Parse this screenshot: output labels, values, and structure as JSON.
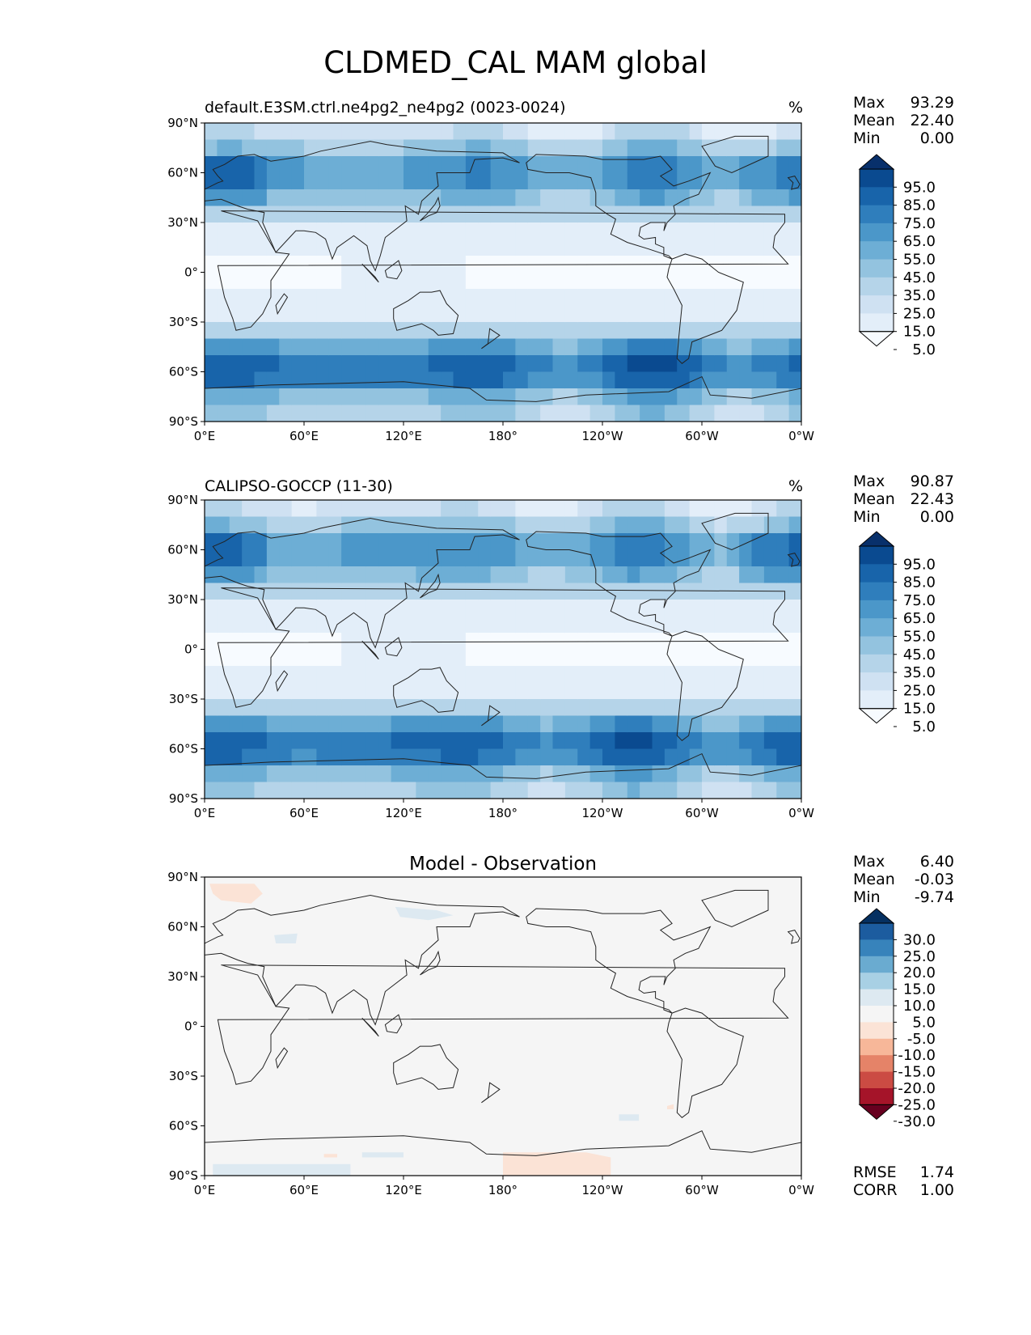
{
  "figure_title": "CLDMED_CAL MAM global",
  "panels": [
    {
      "id": "model",
      "title_left": "default.E3SM.ctrl.ne4pg2_ne4pg2 (0023-0024)",
      "units": "%",
      "stats": {
        "max": "93.29",
        "mean": "22.40",
        "min": "0.00"
      },
      "colorbar_labels": [
        "95.0",
        "85.0",
        "75.0",
        "65.0",
        "55.0",
        "45.0",
        "35.0",
        "25.0",
        "15.0",
        "5.0"
      ]
    },
    {
      "id": "obs",
      "title_left": "CALIPSO-GOCCP (11-30)",
      "units": "%",
      "stats": {
        "max": "90.87",
        "mean": "22.43",
        "min": "0.00"
      },
      "colorbar_labels": [
        "95.0",
        "85.0",
        "75.0",
        "65.0",
        "55.0",
        "45.0",
        "35.0",
        "25.0",
        "15.0",
        "5.0"
      ]
    },
    {
      "id": "diff",
      "title_center": "Model - Observation",
      "stats": {
        "max": "6.40",
        "mean": "-0.03",
        "min": "-9.74"
      },
      "colorbar_labels": [
        "30.0",
        "25.0",
        "20.0",
        "15.0",
        "10.0",
        "5.0",
        "-5.0",
        "-10.0",
        "-15.0",
        "-20.0",
        "-25.0",
        "-30.0"
      ],
      "rmse_label": "RMSE",
      "rmse": "1.74",
      "corr_label": "CORR",
      "corr": "1.00"
    }
  ],
  "stat_labels": {
    "max": "Max",
    "mean": "Mean",
    "min": "Min"
  },
  "lat_ticks": [
    "90°N",
    "60°N",
    "30°N",
    "0°",
    "30°S",
    "60°S",
    "90°S"
  ],
  "lon_ticks": [
    "0°E",
    "60°E",
    "120°E",
    "180°",
    "120°W",
    "60°W",
    "0°W"
  ],
  "colors": {
    "blues": [
      "#f7fbff",
      "#e3eef9",
      "#cfe1f2",
      "#b5d4e9",
      "#93c3df",
      "#6daed5",
      "#4b97c9",
      "#2f7ebc",
      "#1864aa",
      "#0a4a90",
      "#08306b"
    ],
    "diverging": [
      "#67001f",
      "#a51429",
      "#cb4b43",
      "#e58368",
      "#f7b799",
      "#fbe3d6",
      "#f5f5f5",
      "#dde9f1",
      "#a8d0e4",
      "#6aabd0",
      "#3783bb",
      "#1c5c9f",
      "#053061"
    ],
    "land_outline": "#222222",
    "diff_background": "#f5f5f5"
  },
  "chart_data": [
    {
      "type": "heatmap",
      "title": "default.E3SM.ctrl.ne4pg2_ne4pg2 (0023-0024)",
      "units": "%",
      "x_range": [
        "0°E",
        "0°W"
      ],
      "y_range": [
        "90°S",
        "90°N"
      ],
      "zonal_mean_profile": {
        "lat": [
          90,
          80,
          70,
          60,
          50,
          40,
          30,
          20,
          10,
          0,
          -10,
          -20,
          -30,
          -40,
          -50,
          -60,
          -70,
          -80,
          -90
        ],
        "value": [
          15,
          25,
          50,
          65,
          50,
          35,
          20,
          8,
          3,
          2,
          3,
          8,
          20,
          45,
          65,
          75,
          55,
          35,
          30
        ]
      },
      "levels": [
        5,
        15,
        25,
        35,
        45,
        55,
        65,
        75,
        85,
        95
      ]
    },
    {
      "type": "heatmap",
      "title": "CALIPSO-GOCCP (11-30)",
      "units": "%",
      "x_range": [
        "0°E",
        "0°W"
      ],
      "y_range": [
        "90°S",
        "90°N"
      ],
      "zonal_mean_profile": {
        "lat": [
          90,
          80,
          70,
          60,
          50,
          40,
          30,
          20,
          10,
          0,
          -10,
          -20,
          -30,
          -40,
          -50,
          -60,
          -70,
          -80,
          -90
        ],
        "value": [
          15,
          25,
          50,
          65,
          50,
          35,
          20,
          8,
          3,
          2,
          3,
          8,
          20,
          45,
          65,
          75,
          55,
          35,
          30
        ]
      },
      "levels": [
        5,
        15,
        25,
        35,
        45,
        55,
        65,
        75,
        85,
        95
      ]
    },
    {
      "type": "heatmap",
      "title": "Model - Observation",
      "x_range": [
        "0°E",
        "0°W"
      ],
      "y_range": [
        "90°S",
        "90°N"
      ],
      "levels": [
        -30,
        -25,
        -20,
        -15,
        -10,
        -5,
        5,
        10,
        15,
        20,
        25,
        30
      ],
      "anomalies": [
        {
          "region": "Arctic near 10°E-30°E, 80°N",
          "sign": "negative",
          "level": "-5.0"
        },
        {
          "region": "North Pacific near 120°E-150°E, 70°N",
          "sign": "positive",
          "level": "5.0"
        },
        {
          "region": "Eurasia near 50°E, 60°N",
          "sign": "positive",
          "level": "5.0"
        },
        {
          "region": "South Pacific near 100°W, 55°S",
          "sign": "positive",
          "level": "5.0"
        },
        {
          "region": "Antarctica near 180°-100°W, 85°S",
          "sign": "negative",
          "level": "-5.0"
        },
        {
          "region": "Antarctica near 0°E-60°E, 85°S",
          "sign": "positive",
          "level": "5.0"
        }
      ]
    }
  ]
}
